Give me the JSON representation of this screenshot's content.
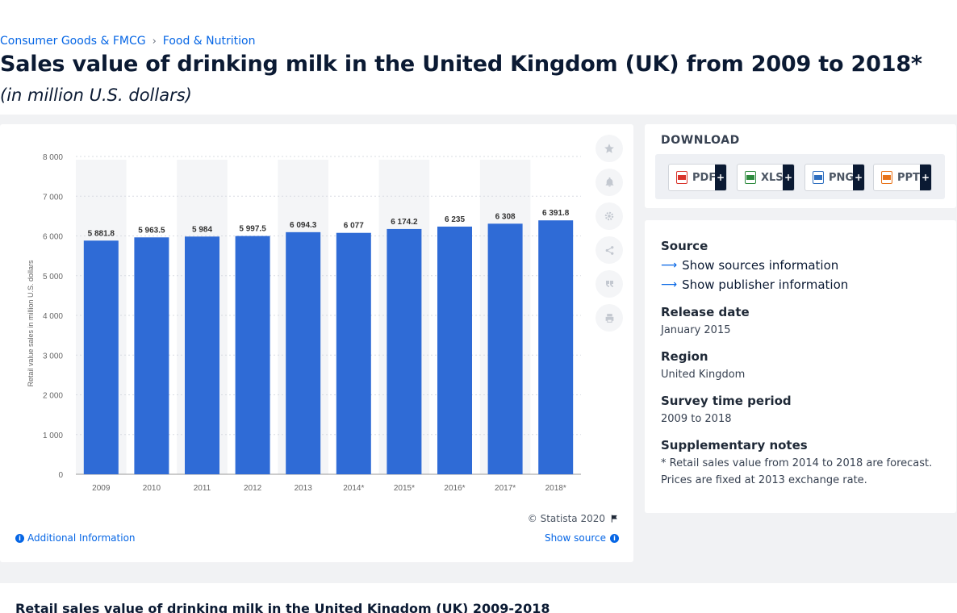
{
  "breadcrumb": {
    "item1": "Consumer Goods & FMCG",
    "item2": "Food & Nutrition",
    "separator": "›"
  },
  "page": {
    "title": "Sales value of drinking milk in the United Kingdom (UK) from 2009 to 2018*",
    "subtitle": "(in million U.S. dollars)"
  },
  "toolbar": {
    "icons": [
      "star-icon",
      "bell-icon",
      "gear-icon",
      "share-icon",
      "quote-icon",
      "print-icon"
    ]
  },
  "chart_footer": {
    "copyright": "© Statista 2020",
    "additional_info": "Additional Information",
    "show_source": "Show source"
  },
  "download": {
    "title": "DOWNLOAD",
    "buttons": [
      {
        "label": "PDF",
        "plus": "+",
        "color": "#d9342b"
      },
      {
        "label": "XLS",
        "plus": "+",
        "color": "#2e8b3e"
      },
      {
        "label": "PNG",
        "plus": "+",
        "color": "#2f6fc0"
      },
      {
        "label": "PPT",
        "plus": "+",
        "color": "#e8731a"
      }
    ]
  },
  "info": {
    "source_heading": "Source",
    "show_sources": "Show sources information",
    "show_publisher": "Show publisher information",
    "release_heading": "Release date",
    "release_value": "January 2015",
    "region_heading": "Region",
    "region_value": "United Kingdom",
    "survey_heading": "Survey time period",
    "survey_value": "2009 to 2018",
    "notes_heading": "Supplementary notes",
    "notes_line1": "* Retail sales value from 2014 to 2018 are forecast.",
    "notes_line2": "Prices are fixed at 2013 exchange rate."
  },
  "bottom": {
    "title": "Retail sales value of drinking milk in the United Kingdom (UK) 2009-2018"
  },
  "chart_data": {
    "type": "bar",
    "categories": [
      "2009",
      "2010",
      "2011",
      "2012",
      "2013",
      "2014*",
      "2015*",
      "2016*",
      "2017*",
      "2018*"
    ],
    "values": [
      5881.8,
      5963.5,
      5984,
      5997.5,
      6094.3,
      6077,
      6174.2,
      6235,
      6308,
      6391.8
    ],
    "value_labels": [
      "5 881.8",
      "5 963.5",
      "5 984",
      "5 997.5",
      "6 094.3",
      "6 077",
      "6 174.2",
      "6 235",
      "6 308",
      "6 391.8"
    ],
    "ylabel": "Retail value sales in million U.S. dollars",
    "ylim": [
      0,
      8000
    ],
    "yticks": [
      0,
      1000,
      2000,
      3000,
      4000,
      5000,
      6000,
      7000,
      8000
    ],
    "ytick_labels": [
      "0",
      "1 000",
      "2 000",
      "3 000",
      "4 000",
      "5 000",
      "6 000",
      "7 000",
      "8 000"
    ],
    "bar_color": "#2f6bd6",
    "grid": true
  }
}
